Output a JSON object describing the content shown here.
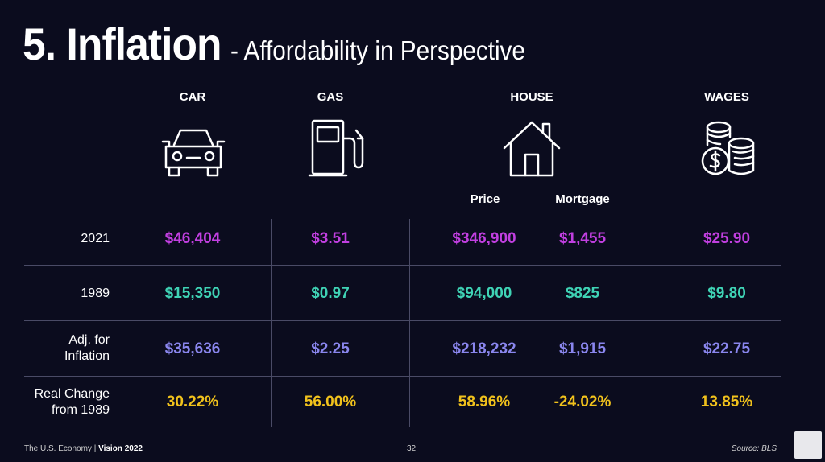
{
  "title": {
    "main": "5. Inflation",
    "sub": "- Affordability in Perspective"
  },
  "columns": {
    "car": "CAR",
    "gas": "GAS",
    "house": "HOUSE",
    "wages": "WAGES"
  },
  "house_sub": {
    "price": "Price",
    "mortgage": "Mortgage"
  },
  "icons": [
    "car-icon",
    "gas-pump-icon",
    "house-icon",
    "coins-icon"
  ],
  "rows": {
    "r2021": {
      "label": "2021",
      "car": "$46,404",
      "gas": "$3.51",
      "price": "$346,900",
      "mortgage": "$1,455",
      "wages": "$25.90"
    },
    "r1989": {
      "label": "1989",
      "car": "$15,350",
      "gas": "$0.97",
      "price": "$94,000",
      "mortgage": "$825",
      "wages": "$9.80"
    },
    "adj": {
      "label_line1": "Adj. for",
      "label_line2": "Inflation",
      "car": "$35,636",
      "gas": "$2.25",
      "price": "$218,232",
      "mortgage": "$1,915",
      "wages": "$22.75"
    },
    "real": {
      "label_line1": "Real Change",
      "label_line2": "from 1989",
      "car": "30.22%",
      "gas": "56.00%",
      "price": "58.96%",
      "mortgage": "-24.02%",
      "wages": "13.85%"
    }
  },
  "colors": {
    "background": "#0b0c1e",
    "2021": "#c13fe0",
    "1989": "#3fd3b5",
    "adjusted": "#8a86ee",
    "real_change": "#f1c21c"
  },
  "footer": {
    "left_a": "The U.S. Economy",
    "sep": "|",
    "left_b": "Vision 2022",
    "page": "32",
    "source": "Source: BLS"
  }
}
